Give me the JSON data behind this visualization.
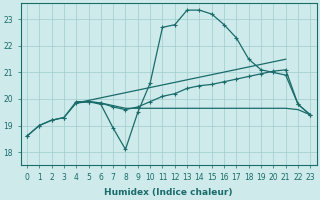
{
  "xlabel": "Humidex (Indice chaleur)",
  "background_color": "#ceeaea",
  "grid_color": "#9ecece",
  "line_color": "#1a6b6b",
  "xlim": [
    -0.5,
    23.5
  ],
  "ylim": [
    17.5,
    23.6
  ],
  "xticks": [
    0,
    1,
    2,
    3,
    4,
    5,
    6,
    7,
    8,
    9,
    10,
    11,
    12,
    13,
    14,
    15,
    16,
    17,
    18,
    19,
    20,
    21,
    22,
    23
  ],
  "yticks": [
    18,
    19,
    20,
    21,
    22,
    23
  ],
  "line1_x": [
    0,
    1,
    2,
    3,
    4,
    5,
    6,
    7,
    8,
    9,
    10,
    11,
    12,
    13,
    14,
    15,
    16,
    17,
    18,
    19,
    20,
    21,
    22,
    23
  ],
  "line1_y": [
    18.6,
    19.0,
    19.2,
    19.3,
    19.9,
    19.9,
    19.8,
    18.9,
    18.1,
    19.5,
    20.6,
    22.7,
    22.8,
    23.35,
    23.35,
    23.2,
    22.8,
    22.3,
    21.5,
    21.1,
    21.0,
    20.9,
    19.8,
    19.4
  ],
  "line2_x": [
    0,
    1,
    2,
    3,
    4,
    5,
    6,
    7,
    8,
    9,
    10,
    11,
    12,
    13,
    14,
    15,
    16,
    17,
    18,
    19,
    20,
    21,
    22,
    23
  ],
  "line2_y": [
    18.6,
    19.0,
    19.2,
    19.3,
    19.85,
    19.9,
    19.85,
    19.7,
    19.6,
    19.7,
    19.9,
    20.1,
    20.2,
    20.4,
    20.5,
    20.55,
    20.65,
    20.75,
    20.85,
    20.95,
    21.05,
    21.1,
    19.8,
    19.4
  ],
  "line3_x": [
    4,
    5,
    6,
    7,
    8,
    9,
    10,
    11,
    12,
    13,
    14,
    15,
    16,
    17,
    18,
    19,
    20,
    21,
    22,
    23
  ],
  "line3_y": [
    19.85,
    19.9,
    19.85,
    19.75,
    19.65,
    19.65,
    19.65,
    19.65,
    19.65,
    19.65,
    19.65,
    19.65,
    19.65,
    19.65,
    19.65,
    19.65,
    19.65,
    19.65,
    19.6,
    19.4
  ],
  "line4_x": [
    4,
    21
  ],
  "line4_y": [
    19.85,
    21.5
  ]
}
